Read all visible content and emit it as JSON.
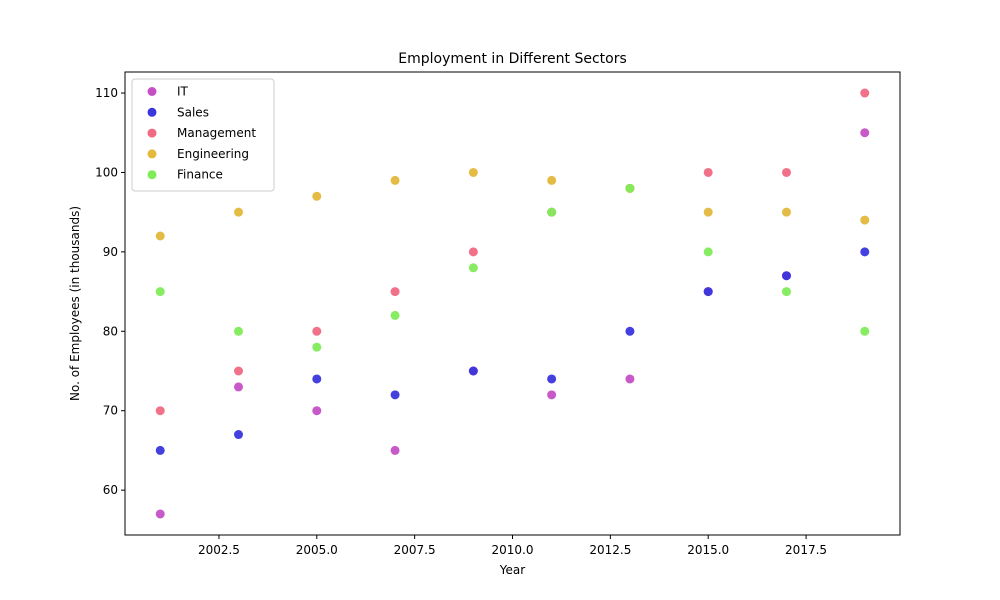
{
  "chart_data": {
    "type": "scatter",
    "title": "Employment in Different Sectors",
    "xlabel": "Year",
    "ylabel": "No. of Employees (in thousands)",
    "xlim": [
      2000.1,
      2019.9
    ],
    "ylim": [
      54.35,
      112.65
    ],
    "xticks": [
      2002.5,
      2005.0,
      2007.5,
      2010.0,
      2012.5,
      2015.0,
      2017.5
    ],
    "xtick_labels": [
      "2002.5",
      "2005.0",
      "2007.5",
      "2010.0",
      "2012.5",
      "2015.0",
      "2017.5"
    ],
    "yticks": [
      60,
      70,
      80,
      90,
      100,
      110
    ],
    "ytick_labels": [
      "60",
      "70",
      "80",
      "90",
      "100",
      "110"
    ],
    "grid": false,
    "legend_position": "top-left",
    "x": [
      2001,
      2003,
      2005,
      2007,
      2009,
      2011,
      2013,
      2015,
      2017,
      2019
    ],
    "series": [
      {
        "name": "IT",
        "color": "#c550c5",
        "values": [
          57,
          73,
          70,
          65,
          75,
          72,
          74,
          85,
          87,
          105
        ]
      },
      {
        "name": "Sales",
        "color": "#3a35dd",
        "values": [
          65,
          67,
          74,
          72,
          75,
          74,
          80,
          85,
          87,
          90
        ]
      },
      {
        "name": "Management",
        "color": "#f06a82",
        "values": [
          70,
          75,
          80,
          85,
          90,
          95,
          98,
          100,
          100,
          110
        ]
      },
      {
        "name": "Engineering",
        "color": "#e3b83b",
        "values": [
          92,
          95,
          97,
          99,
          100,
          99,
          98,
          95,
          95,
          94
        ]
      },
      {
        "name": "Finance",
        "color": "#7fec5a",
        "values": [
          85,
          80,
          78,
          82,
          88,
          95,
          98,
          90,
          85,
          80
        ]
      }
    ]
  }
}
